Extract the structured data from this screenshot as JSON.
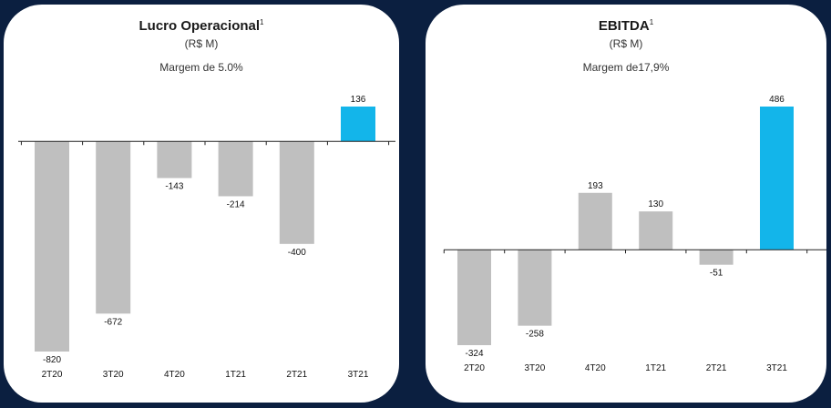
{
  "colors": {
    "background": "#0b1f40",
    "bar_default": "#bfbfbf",
    "bar_highlight": "#13b5ea",
    "axis": "#222222"
  },
  "chart_data": [
    {
      "type": "bar",
      "title": "Lucro Operacional",
      "title_sup": "1",
      "subtitle": "(R$ M)",
      "annotation": "Margem de 5.0%",
      "categories": [
        "2T20",
        "3T20",
        "4T20",
        "1T21",
        "2T21",
        "3T21"
      ],
      "values": [
        -820,
        -672,
        -143,
        -214,
        -400,
        136
      ],
      "value_labels": [
        "-820",
        "-672",
        "-143",
        "-214",
        "-400",
        "136"
      ],
      "highlight_index": 5,
      "ylim": [
        -820,
        136
      ]
    },
    {
      "type": "bar",
      "title": "EBITDA",
      "title_sup": "1",
      "subtitle": "(R$ M)",
      "annotation": "Margem de17,9%",
      "categories": [
        "2T20",
        "3T20",
        "4T20",
        "1T21",
        "2T21",
        "3T21"
      ],
      "values": [
        -324,
        -258,
        193,
        130,
        -51,
        486
      ],
      "value_labels": [
        "-324",
        "-258",
        "193",
        "130",
        "-51",
        "486"
      ],
      "highlight_index": 5,
      "ylim": [
        -324,
        486
      ]
    }
  ]
}
